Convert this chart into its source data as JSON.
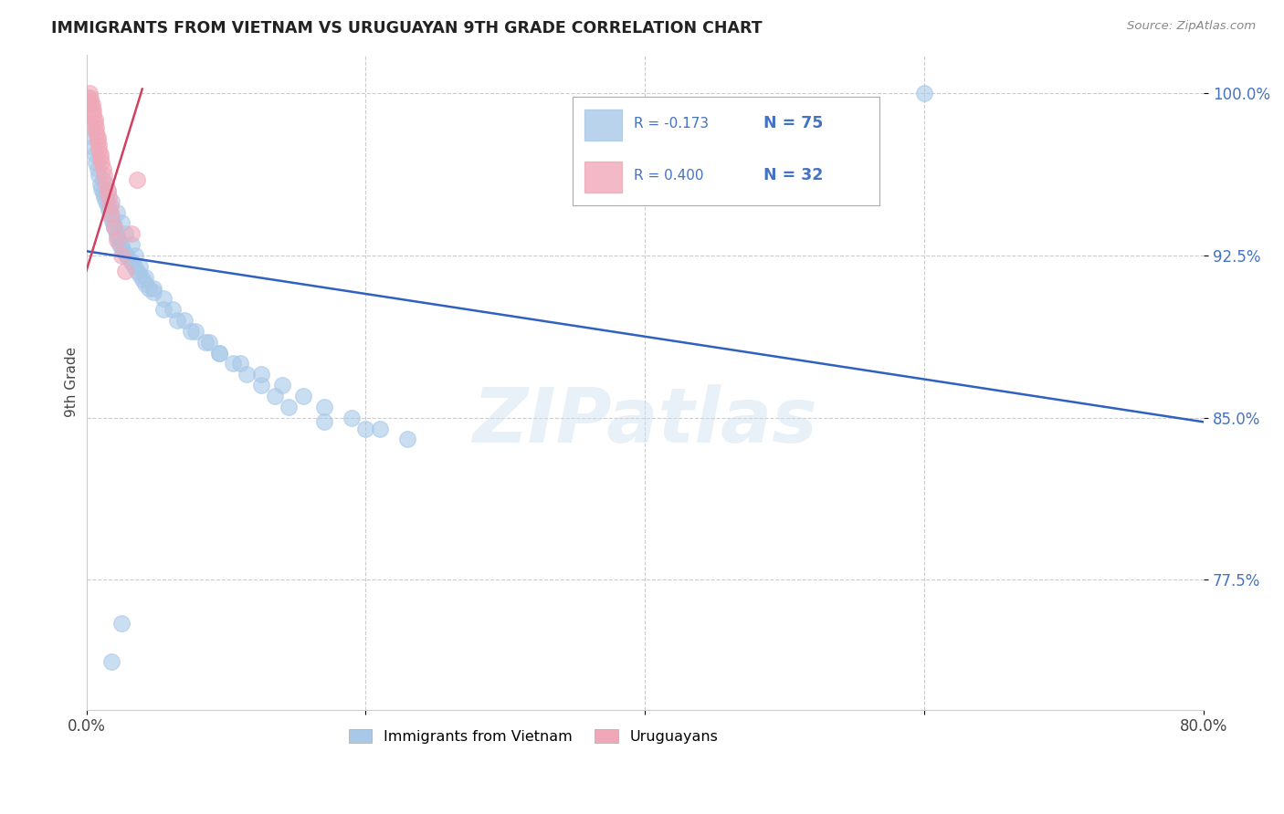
{
  "title": "IMMIGRANTS FROM VIETNAM VS URUGUAYAN 9TH GRADE CORRELATION CHART",
  "source": "Source: ZipAtlas.com",
  "ylabel": "9th Grade",
  "legend_blue_label": "Immigrants from Vietnam",
  "legend_pink_label": "Uruguayans",
  "R_blue": -0.173,
  "N_blue": 75,
  "R_pink": 0.4,
  "N_pink": 32,
  "blue_color": "#a8c8e8",
  "pink_color": "#f0a8b8",
  "blue_line_color": "#3060c0",
  "pink_line_color": "#d04060",
  "watermark": "ZIPatlas",
  "xlim": [
    0.0,
    0.8
  ],
  "ylim": [
    0.715,
    1.018
  ],
  "x_ticks": [
    0.0,
    0.2,
    0.4,
    0.6,
    0.8
  ],
  "x_tick_labels_show": [
    "0.0%",
    "",
    "",
    "",
    "80.0%"
  ],
  "y_ticks": [
    0.775,
    0.85,
    0.925,
    1.0
  ],
  "y_tick_labels": [
    "77.5%",
    "85.0%",
    "92.5%",
    "100.0%"
  ],
  "blue_line_x0": 0.0,
  "blue_line_y0": 0.927,
  "blue_line_x1": 0.8,
  "blue_line_y1": 0.848,
  "pink_line_x0": 0.0,
  "pink_line_x1": 0.04,
  "pink_line_y0": 0.918,
  "pink_line_y1": 1.002,
  "blue_dots_x": [
    0.002,
    0.003,
    0.004,
    0.005,
    0.006,
    0.007,
    0.008,
    0.009,
    0.01,
    0.011,
    0.012,
    0.013,
    0.014,
    0.015,
    0.016,
    0.017,
    0.018,
    0.019,
    0.02,
    0.021,
    0.022,
    0.023,
    0.024,
    0.025,
    0.026,
    0.028,
    0.03,
    0.032,
    0.034,
    0.036,
    0.038,
    0.04,
    0.042,
    0.045,
    0.048,
    0.012,
    0.015,
    0.018,
    0.022,
    0.025,
    0.028,
    0.032,
    0.035,
    0.038,
    0.042,
    0.048,
    0.055,
    0.062,
    0.07,
    0.078,
    0.088,
    0.095,
    0.105,
    0.115,
    0.125,
    0.135,
    0.145,
    0.055,
    0.065,
    0.075,
    0.085,
    0.095,
    0.11,
    0.125,
    0.14,
    0.155,
    0.17,
    0.19,
    0.21,
    0.23,
    0.17,
    0.2,
    0.6,
    0.018,
    0.025
  ],
  "blue_dots_y": [
    0.995,
    0.985,
    0.98,
    0.975,
    0.972,
    0.968,
    0.965,
    0.962,
    0.958,
    0.956,
    0.954,
    0.952,
    0.95,
    0.948,
    0.946,
    0.944,
    0.942,
    0.94,
    0.938,
    0.936,
    0.934,
    0.932,
    0.93,
    0.929,
    0.928,
    0.926,
    0.924,
    0.922,
    0.92,
    0.918,
    0.916,
    0.914,
    0.912,
    0.91,
    0.908,
    0.96,
    0.955,
    0.95,
    0.945,
    0.94,
    0.935,
    0.93,
    0.925,
    0.92,
    0.915,
    0.91,
    0.905,
    0.9,
    0.895,
    0.89,
    0.885,
    0.88,
    0.875,
    0.87,
    0.865,
    0.86,
    0.855,
    0.9,
    0.895,
    0.89,
    0.885,
    0.88,
    0.875,
    0.87,
    0.865,
    0.86,
    0.855,
    0.85,
    0.845,
    0.84,
    0.848,
    0.845,
    1.0,
    0.737,
    0.755
  ],
  "pink_dots_x": [
    0.001,
    0.002,
    0.003,
    0.003,
    0.004,
    0.004,
    0.005,
    0.005,
    0.006,
    0.006,
    0.007,
    0.007,
    0.008,
    0.008,
    0.009,
    0.009,
    0.01,
    0.01,
    0.011,
    0.012,
    0.013,
    0.014,
    0.015,
    0.016,
    0.017,
    0.018,
    0.02,
    0.022,
    0.025,
    0.028,
    0.032,
    0.036
  ],
  "pink_dots_y": [
    0.998,
    1.0,
    0.998,
    0.996,
    0.995,
    0.993,
    0.992,
    0.99,
    0.988,
    0.986,
    0.984,
    0.982,
    0.98,
    0.978,
    0.976,
    0.974,
    0.972,
    0.97,
    0.968,
    0.965,
    0.962,
    0.958,
    0.955,
    0.952,
    0.948,
    0.944,
    0.938,
    0.932,
    0.925,
    0.918,
    0.935,
    0.96
  ]
}
